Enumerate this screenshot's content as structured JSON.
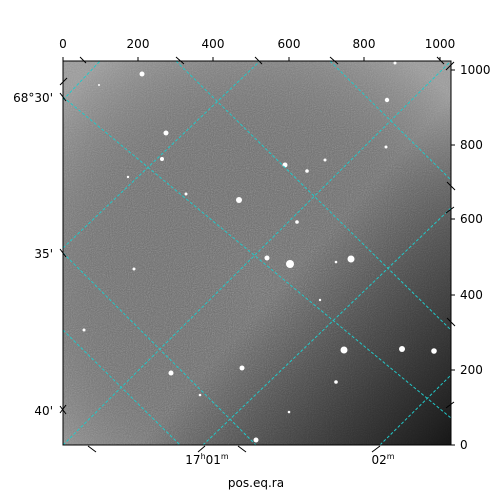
{
  "figure": {
    "xlabel": "pos.eq.ra",
    "top_ticks": [
      "0",
      "200",
      "400",
      "600",
      "800",
      "1000"
    ],
    "right_ticks": [
      "0",
      "200",
      "400",
      "600",
      "800",
      "1000"
    ],
    "left_ticks": [
      "68°30'",
      "35'",
      "40'"
    ],
    "bottom_ticks": [
      {
        "main": "17",
        "sup1": "h",
        "mid": "01",
        "sup2": "m"
      },
      {
        "main": "02",
        "sup1": "m",
        "mid": "",
        "sup2": ""
      }
    ]
  },
  "colors": {
    "grid": "#22c8c8",
    "frame": "#000000"
  }
}
